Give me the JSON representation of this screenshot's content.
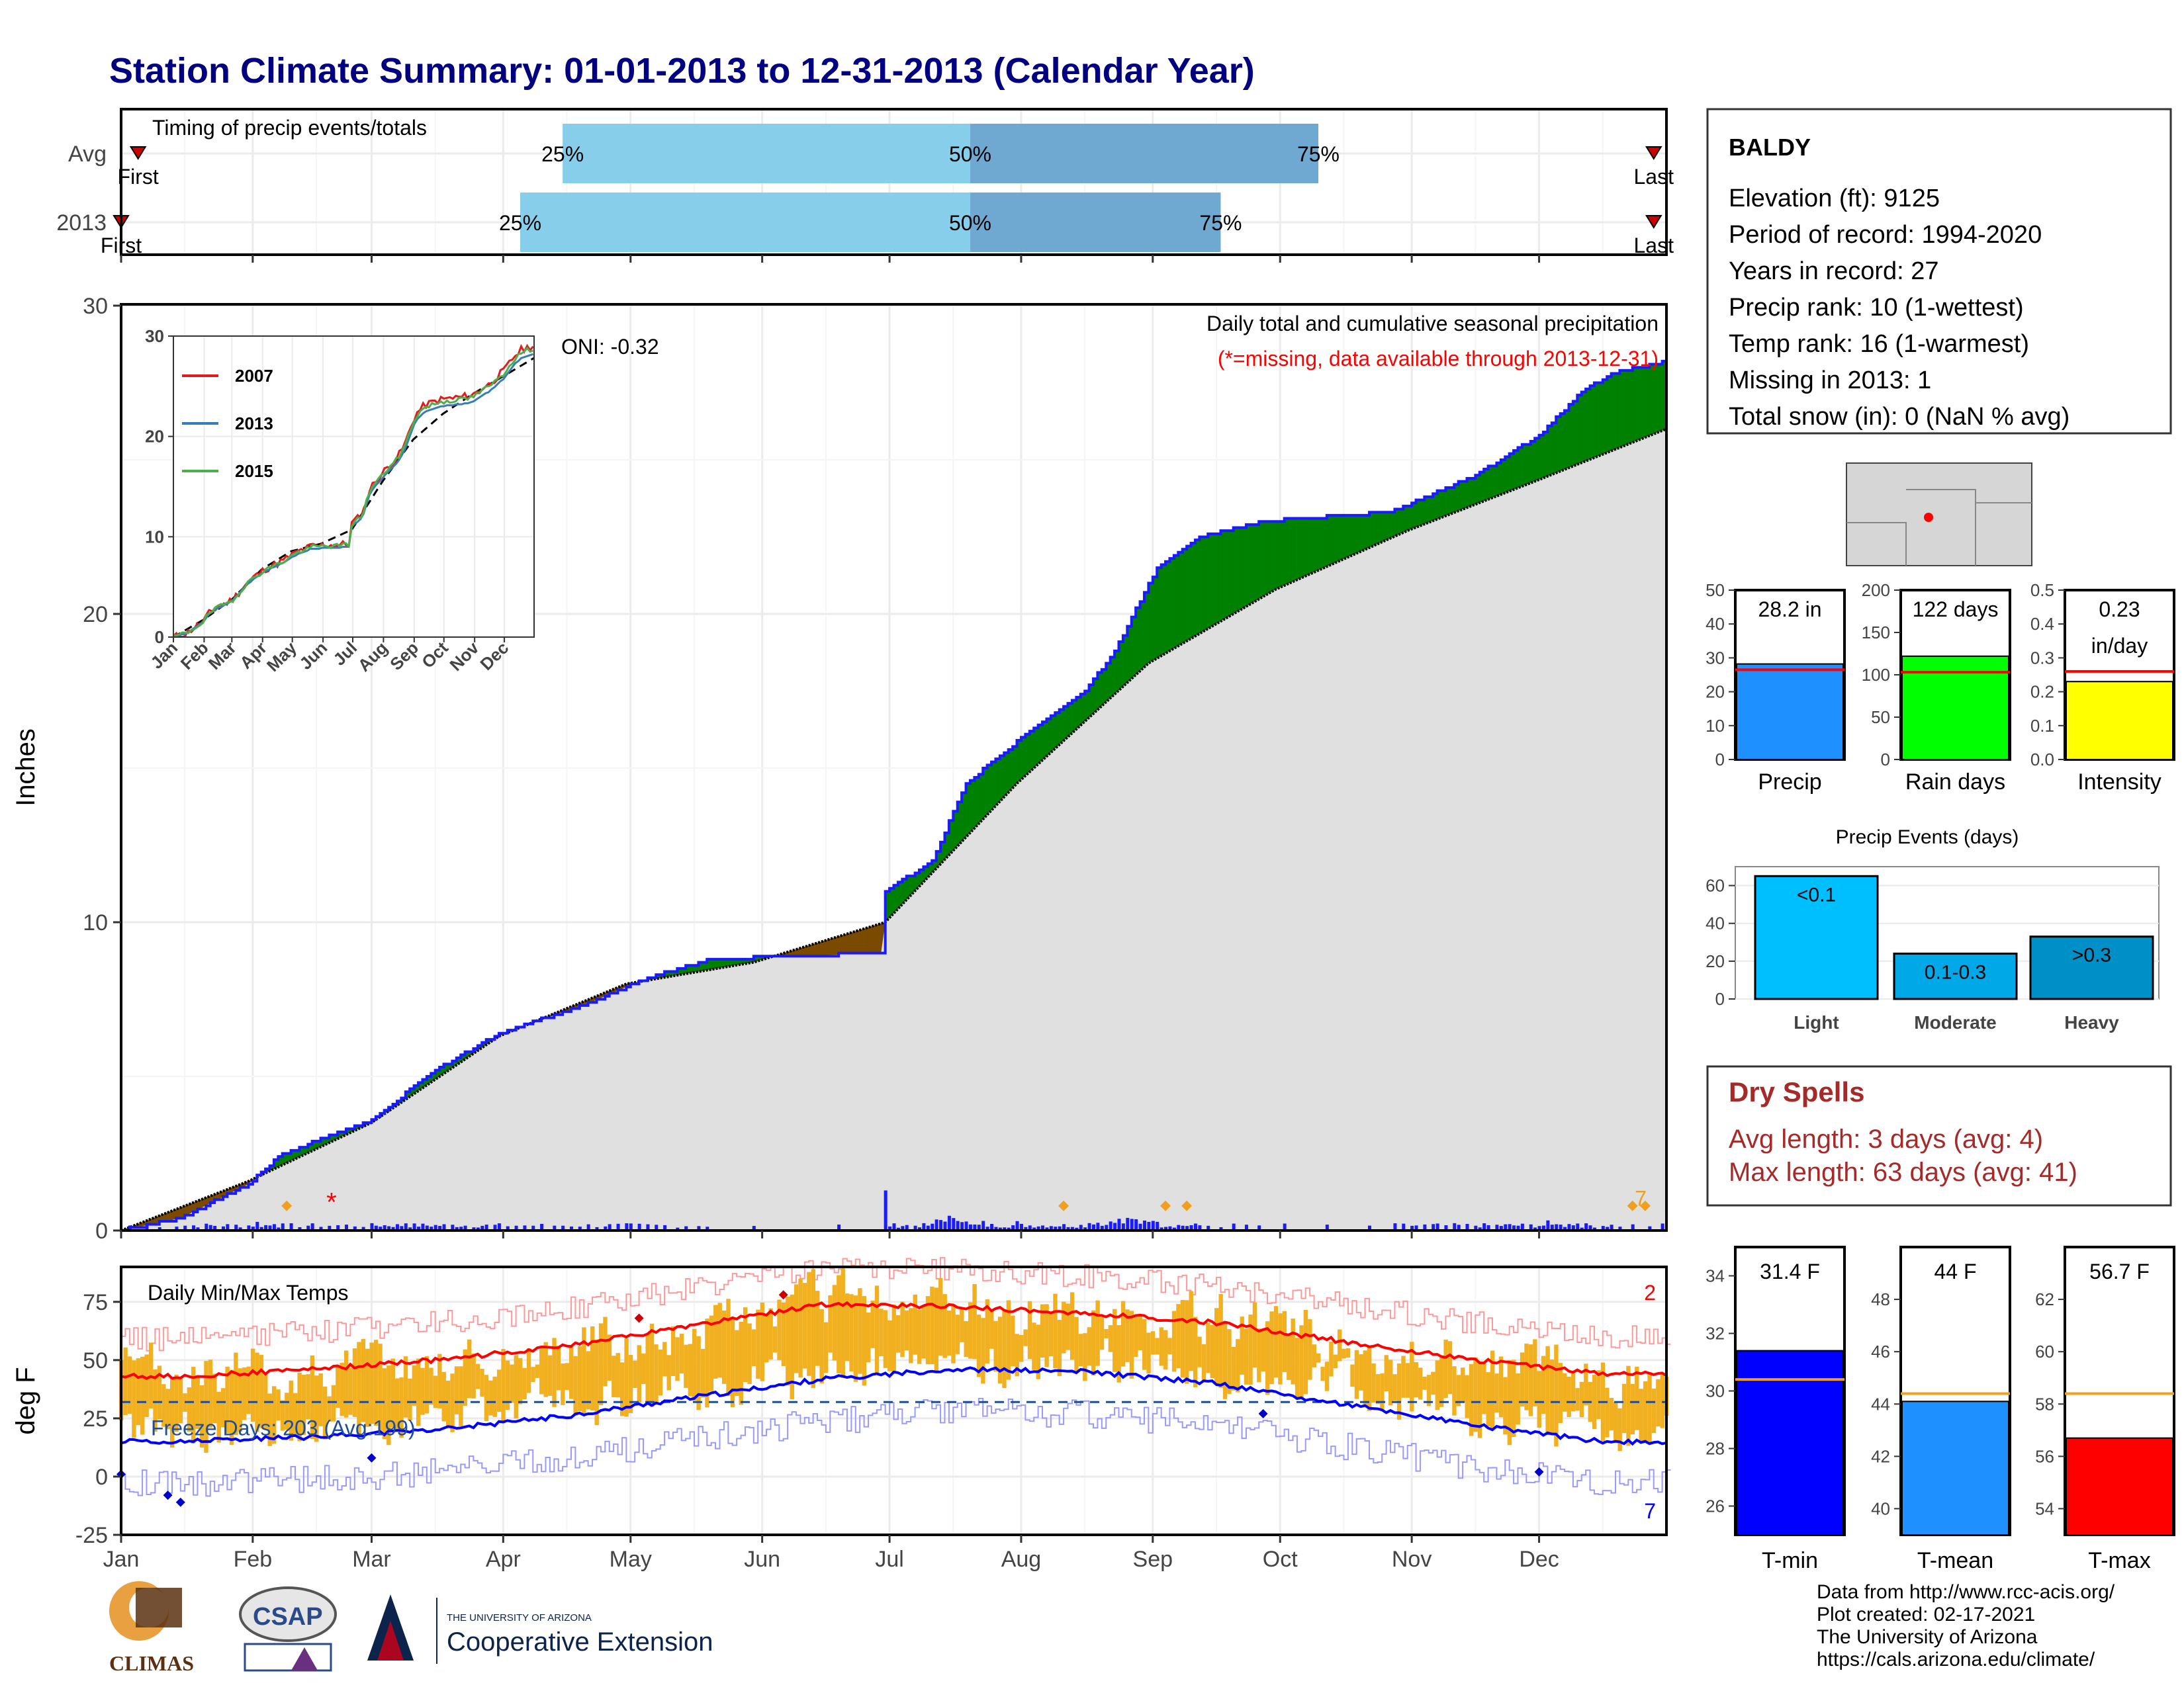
{
  "page": {
    "title": "Station Climate Summary: 01-01-2013 to 12-31-2013 (Calendar Year)",
    "colors": {
      "title": "#000080",
      "precip_bar": "#1a1aff",
      "above": "#008000",
      "below": "#7a4a00",
      "base": "#e0e0e0",
      "cum": "#1a1aff",
      "tmax": "#ff0000",
      "tmin": "#0000ff",
      "range": "#f0b020",
      "light_blue": "#87ceeb",
      "mid_blue": "#6fa8d0"
    }
  },
  "timing": {
    "title": "Timing of precip events/totals",
    "rows": [
      {
        "label": "Avg",
        "first_label": "First",
        "last_label": "Last",
        "first_day": 5,
        "p25_day": 105,
        "p50_day": 201,
        "p75_day": 283,
        "last_day": 362,
        "p25_label": "25%",
        "p50_label": "50%",
        "p75_label": "75%"
      },
      {
        "label": "2013",
        "first_label": "First",
        "last_label": "Last",
        "first_day": 1,
        "p25_day": 95,
        "p50_day": 201,
        "p75_day": 260,
        "last_day": 362,
        "p25_label": "25%",
        "p50_label": "50%",
        "p75_label": "75%"
      }
    ]
  },
  "precip_panel": {
    "ylabel": "Inches",
    "ylim": [
      0,
      30
    ],
    "yticks": [
      "0",
      "10",
      "20",
      "30"
    ],
    "header1": "Daily total and cumulative seasonal precipitation",
    "header2": "(*=missing, data available through 2013-12-31)",
    "oni": "ONI: -0.32",
    "count_label": "7",
    "missing_marker": "*"
  },
  "inset": {
    "yticks": [
      "0",
      "10",
      "20",
      "30"
    ],
    "months": [
      "Jan",
      "Feb",
      "Mar",
      "Apr",
      "May",
      "Jun",
      "Jul",
      "Aug",
      "Sep",
      "Oct",
      "Nov",
      "Dec"
    ],
    "legend": [
      {
        "name": "2007",
        "color": "#e41a1c"
      },
      {
        "name": "2013",
        "color": "#377eb8"
      },
      {
        "name": "2015",
        "color": "#4daf4a"
      }
    ]
  },
  "temp_panel": {
    "ylabel": "deg F",
    "title": "Daily Min/Max Temps",
    "yticks": [
      "-25",
      "0",
      "25",
      "50",
      "75"
    ],
    "freeze_label": "Freeze Days: 203 (Avg:199)",
    "count_top": "2",
    "count_bottom": "7"
  },
  "months": [
    "Jan",
    "Feb",
    "Mar",
    "Apr",
    "May",
    "Jun",
    "Jul",
    "Aug",
    "Sep",
    "Oct",
    "Nov",
    "Dec"
  ],
  "station": {
    "name": "BALDY",
    "lines": [
      "Elevation (ft): 9125",
      "Period of record: 1994-2020",
      "Years in record: 27",
      "Precip rank: 10 (1-wettest)",
      "Temp rank: 16 (1-warmest)",
      "Missing in 2013: 1",
      "Total snow (in): 0 (NaN % avg)"
    ]
  },
  "summary_bars": [
    {
      "label": "Precip",
      "value_label": "28.2 in",
      "value": 28.2,
      "avg": 26.5,
      "ylim": [
        0,
        50
      ],
      "yticks": [
        "0",
        "10",
        "20",
        "30",
        "40",
        "50"
      ],
      "color": "#1e90ff"
    },
    {
      "label": "Rain days",
      "value_label": "122 days",
      "value": 122,
      "avg": 103,
      "ylim": [
        0,
        200
      ],
      "yticks": [
        "0",
        "50",
        "100",
        "150",
        "200"
      ],
      "color": "#00ff00"
    },
    {
      "label": "Intensity",
      "value_label": "0.23",
      "value_label2": "in/day",
      "value": 0.23,
      "avg": 0.26,
      "ylim": [
        0,
        0.5
      ],
      "yticks": [
        "0.0",
        "0.1",
        "0.2",
        "0.3",
        "0.4",
        "0.5"
      ],
      "color": "#ffff00"
    }
  ],
  "events": {
    "title": "Precip Events (days)",
    "ylim": [
      0,
      70
    ],
    "yticks": [
      "0",
      "20",
      "40",
      "60"
    ],
    "bars": [
      {
        "label": "Light",
        "code": "<0.1",
        "value": 65,
        "color": "#00bfff"
      },
      {
        "label": "Moderate",
        "code": "0.1-0.3",
        "value": 24,
        "color": "#00a8e8"
      },
      {
        "label": "Heavy",
        "code": ">0.3",
        "value": 33,
        "color": "#0090c8"
      }
    ]
  },
  "dry_spells": {
    "title": "Dry Spells",
    "line1": "Avg length: 3 days (avg: 4)",
    "line2": "Max length: 63 days (avg: 41)"
  },
  "temp_bars": [
    {
      "label": "T-min",
      "value_label": "31.4 F",
      "value": 31.4,
      "avg": 30.4,
      "ylim": [
        25,
        35
      ],
      "yticks": [
        "26",
        "28",
        "30",
        "32",
        "34"
      ],
      "color": "#0000ff"
    },
    {
      "label": "T-mean",
      "value_label": "44 F",
      "value": 44.1,
      "avg": 44.4,
      "ylim": [
        39,
        50
      ],
      "yticks": [
        "40",
        "42",
        "44",
        "46",
        "48"
      ],
      "color": "#1e90ff"
    },
    {
      "label": "T-max",
      "value_label": "56.7 F",
      "value": 56.7,
      "avg": 58.4,
      "ylim": [
        53,
        64
      ],
      "yticks": [
        "54",
        "56",
        "58",
        "60",
        "62"
      ],
      "color": "#ff0000"
    }
  ],
  "logos": {
    "climas": "CLIMAS",
    "csap": "CSAP",
    "ua_small": "THE UNIVERSITY OF ARIZONA",
    "ua_big": "Cooperative Extension"
  },
  "credits": [
    "Data from http://www.rcc-acis.org/",
    "Plot created: 02-17-2021",
    "The University of Arizona",
    "https://cals.arizona.edu/climate/"
  ],
  "chart_data": [
    {
      "type": "area",
      "title": "Daily total and cumulative seasonal precipitation",
      "ylabel": "Inches",
      "ylim": [
        0,
        30
      ],
      "cumulative_2013": [
        [
          1,
          0
        ],
        [
          15,
          0.4
        ],
        [
          31,
          1.5
        ],
        [
          38,
          2.4
        ],
        [
          45,
          2.8
        ],
        [
          60,
          3.6
        ],
        [
          75,
          5.2
        ],
        [
          90,
          6.4
        ],
        [
          110,
          7.3
        ],
        [
          125,
          8.2
        ],
        [
          140,
          8.8
        ],
        [
          180,
          9.0
        ],
        [
          181,
          11.0
        ],
        [
          192,
          12.0
        ],
        [
          200,
          14.5
        ],
        [
          215,
          16.2
        ],
        [
          228,
          17.5
        ],
        [
          235,
          18.8
        ],
        [
          245,
          21.5
        ],
        [
          255,
          22.5
        ],
        [
          270,
          23.0
        ],
        [
          300,
          23.3
        ],
        [
          320,
          24.5
        ],
        [
          335,
          25.8
        ],
        [
          345,
          27.2
        ],
        [
          352,
          27.8
        ],
        [
          365,
          28.2
        ]
      ],
      "cumulative_avg": [
        [
          1,
          0
        ],
        [
          31,
          1.6
        ],
        [
          60,
          3.5
        ],
        [
          90,
          6.3
        ],
        [
          120,
          8.0
        ],
        [
          150,
          8.7
        ],
        [
          181,
          10.0
        ],
        [
          212,
          14.5
        ],
        [
          243,
          18.4
        ],
        [
          273,
          20.8
        ],
        [
          304,
          22.7
        ],
        [
          334,
          24.3
        ],
        [
          365,
          26.0
        ]
      ]
    },
    {
      "type": "line",
      "title": "Daily Min/Max Temps",
      "ylabel": "deg F",
      "ylim": [
        -25,
        90
      ],
      "x": [
        "Jan",
        "Feb",
        "Mar",
        "Apr",
        "May",
        "Jun",
        "Jul",
        "Aug",
        "Sep",
        "Oct",
        "Nov",
        "Dec"
      ],
      "series": [
        {
          "name": "avg max",
          "values": [
            43,
            46,
            50,
            56,
            65,
            74,
            73,
            70,
            66,
            58,
            50,
            44
          ]
        },
        {
          "name": "avg min",
          "values": [
            15,
            17,
            20,
            26,
            34,
            42,
            46,
            45,
            40,
            31,
            22,
            15
          ]
        }
      ]
    }
  ]
}
